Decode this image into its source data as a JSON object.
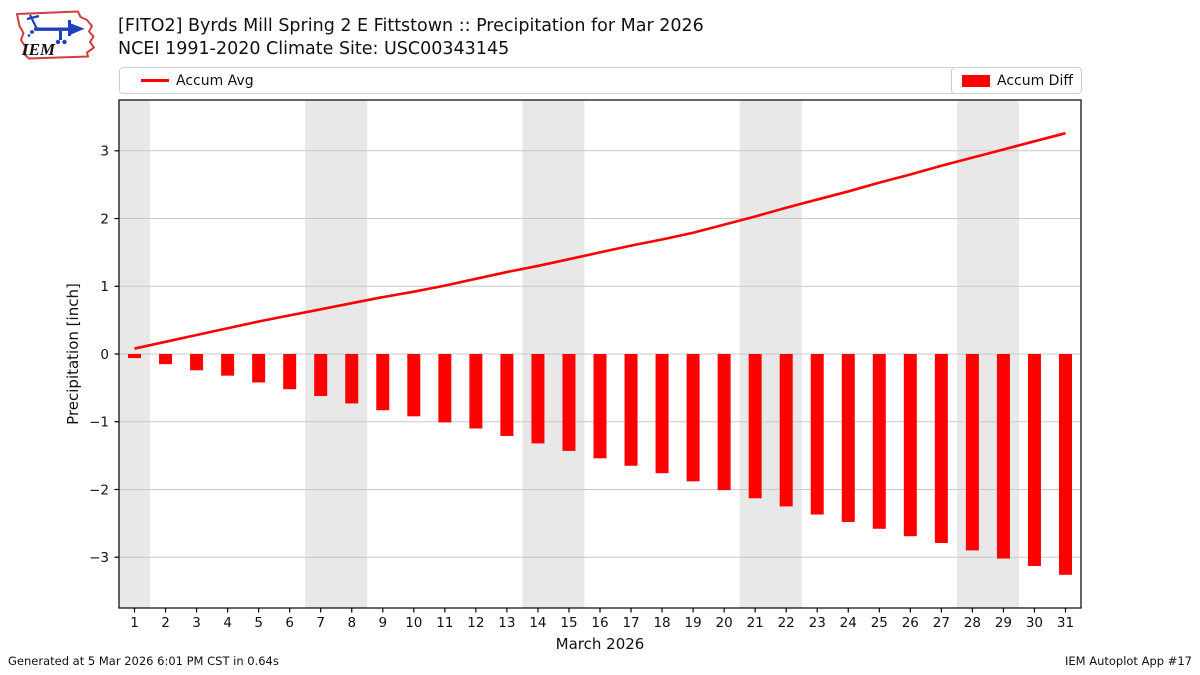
{
  "header": {
    "logo_text": "IEM",
    "title_line1": "[FITO2] Byrds Mill Spring 2 E Fittstown :: Precipitation for Mar 2026",
    "title_line2": "NCEI 1991-2020 Climate Site: USC00343145"
  },
  "legend": {
    "avg_label": "Accum Avg",
    "diff_label": "Accum Diff"
  },
  "footer": {
    "left": "Generated at 5 Mar 2026 6:01 PM CST in 0.64s",
    "right": "IEM Autoplot App #17"
  },
  "colors": {
    "accent_red": "#ff0000",
    "logo_red": "#cc2222",
    "logo_blue": "#1f3fbf",
    "weekend_band": "#e8e8e8",
    "gridline": "#c9c9c9",
    "axis": "#000000"
  },
  "chart_data": {
    "type": "bar",
    "title": "[FITO2] Byrds Mill Spring 2 E Fittstown :: Precipitation for Mar 2026",
    "subtitle": "NCEI 1991-2020 Climate Site: USC00343145",
    "xlabel": "March 2026",
    "ylabel": "Precipitation [inch]",
    "x": [
      1,
      2,
      3,
      4,
      5,
      6,
      7,
      8,
      9,
      10,
      11,
      12,
      13,
      14,
      15,
      16,
      17,
      18,
      19,
      20,
      21,
      22,
      23,
      24,
      25,
      26,
      27,
      28,
      29,
      30,
      31
    ],
    "series": [
      {
        "name": "Accum Avg",
        "type": "line",
        "color": "#ff0000",
        "values": [
          0.08,
          0.18,
          0.28,
          0.38,
          0.48,
          0.57,
          0.66,
          0.75,
          0.84,
          0.92,
          1.01,
          1.11,
          1.21,
          1.3,
          1.4,
          1.5,
          1.6,
          1.69,
          1.79,
          1.91,
          2.03,
          2.16,
          2.28,
          2.4,
          2.53,
          2.65,
          2.78,
          2.9,
          3.02,
          3.14,
          3.26
        ]
      },
      {
        "name": "Accum Diff",
        "type": "bar",
        "color": "#ff0000",
        "values": [
          -0.06,
          -0.15,
          -0.24,
          -0.32,
          -0.42,
          -0.52,
          -0.62,
          -0.73,
          -0.83,
          -0.92,
          -1.01,
          -1.1,
          -1.21,
          -1.32,
          -1.43,
          -1.54,
          -1.65,
          -1.76,
          -1.88,
          -2.01,
          -2.13,
          -2.25,
          -2.37,
          -2.48,
          -2.58,
          -2.69,
          -2.79,
          -2.9,
          -3.02,
          -3.13,
          -3.26
        ]
      }
    ],
    "xlim": [
      0.5,
      31.5
    ],
    "ylim": [
      -3.75,
      3.75
    ],
    "yticks": [
      -3,
      -2,
      -1,
      0,
      1,
      2,
      3
    ],
    "weekend_bands": [
      [
        0.5,
        1.5
      ],
      [
        6.5,
        8.5
      ],
      [
        13.5,
        15.5
      ],
      [
        20.5,
        22.5
      ],
      [
        27.5,
        29.5
      ]
    ],
    "grid": true,
    "legend_position": "top"
  }
}
